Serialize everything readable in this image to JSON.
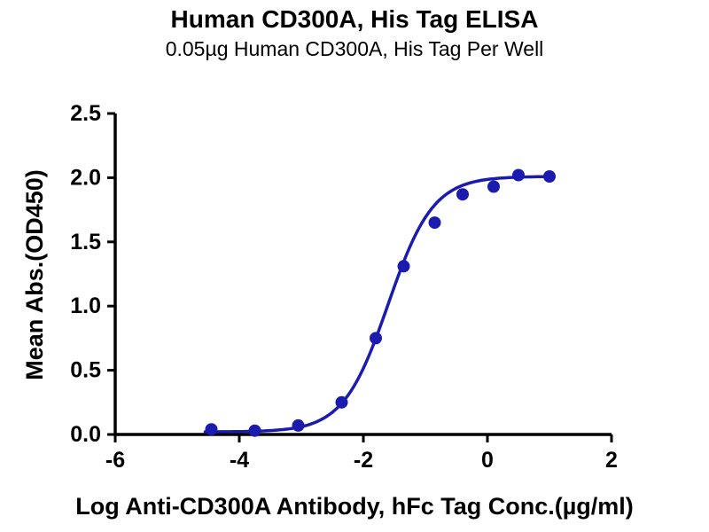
{
  "chart_data": {
    "type": "scatter",
    "title": "Human CD300A, His Tag ELISA",
    "subtitle": "0.05µg Human CD300A, His Tag Per Well",
    "xlabel": "Log Anti-CD300A Antibody, hFc Tag Conc.(µg/ml)",
    "ylabel": "Mean Abs.(OD450)",
    "xlim": [
      -6,
      2
    ],
    "ylim": [
      0,
      2.5
    ],
    "xticks": [
      "-6",
      "-4",
      "-2",
      "0",
      "2"
    ],
    "yticks": [
      "0.0",
      "0.5",
      "1.0",
      "1.5",
      "2.0",
      "2.5"
    ],
    "grid": false,
    "legend_position": "none",
    "axis_color": "#000000",
    "series": [
      {
        "name": "Human CD300A, His Tag",
        "marker": "circle",
        "color": "#1b1bb0",
        "x": [
          -4.45,
          -3.75,
          -3.05,
          -2.35,
          -1.8,
          -1.35,
          -0.85,
          -0.4,
          0.1,
          0.5,
          1.0
        ],
        "y": [
          0.04,
          0.03,
          0.07,
          0.25,
          0.75,
          1.31,
          1.65,
          1.87,
          1.93,
          2.02,
          2.01
        ]
      }
    ],
    "fit_curve": {
      "model": "4PL",
      "bottom": 0.02,
      "top": 2.01,
      "log_ec50": -1.6,
      "hill": 1.2,
      "x_range": [
        -4.55,
        1.0
      ],
      "color": "#1b1bb0"
    }
  }
}
